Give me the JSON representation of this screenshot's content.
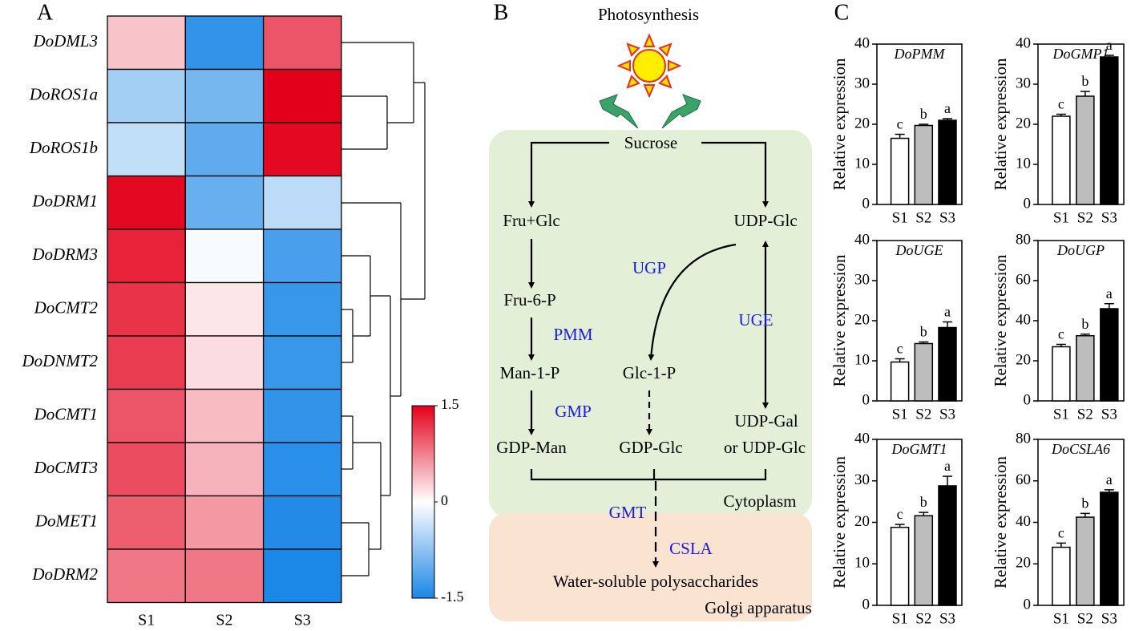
{
  "panel_labels": [
    "A",
    "B",
    "C"
  ],
  "chart_data": [
    {
      "type": "heatmap",
      "rows": [
        "DoDML3",
        "DoROS1a",
        "DoROS1b",
        "DoDRM1",
        "DoDRM3",
        "DoCMT2",
        "DoDNMT2",
        "DoCMT1",
        "DoCMT3",
        "DoMET1",
        "DoDRM2"
      ],
      "columns": [
        "S1",
        "S2",
        "S3"
      ],
      "values": [
        [
          0.35,
          -1.35,
          1.0
        ],
        [
          -0.6,
          -0.9,
          1.5
        ],
        [
          -0.4,
          -1.05,
          1.45
        ],
        [
          1.45,
          -1.0,
          -0.45
        ],
        [
          1.3,
          -0.05,
          -1.2
        ],
        [
          1.2,
          0.15,
          -1.3
        ],
        [
          1.15,
          0.2,
          -1.3
        ],
        [
          1.0,
          0.4,
          -1.35
        ],
        [
          1.05,
          0.45,
          -1.4
        ],
        [
          0.95,
          0.6,
          -1.45
        ],
        [
          0.8,
          0.8,
          -1.5
        ]
      ],
      "zlim": [
        -1.5,
        1.5
      ],
      "zticks": [
        1.5,
        0,
        -1.5
      ],
      "colors": [
        "#1b87e6",
        "#ffffff",
        "#e3001b"
      ]
    },
    {
      "type": "bar",
      "title": "DoPMM",
      "ylabel": "Relative expression",
      "categories": [
        "S1",
        "S2",
        "S3"
      ],
      "values": [
        16.5,
        19.7,
        21.0
      ],
      "errors": [
        1.0,
        0.3,
        0.4
      ],
      "labels": [
        "c",
        "b",
        "a"
      ],
      "colors": [
        "#ffffff",
        "#bdbdbd",
        "#000000"
      ],
      "ylim": [
        0,
        40
      ],
      "yticks": [
        0,
        10,
        20,
        30,
        40
      ]
    },
    {
      "type": "bar",
      "title": "DoGMP1",
      "ylabel": "Relative expression",
      "categories": [
        "S1",
        "S2",
        "S3"
      ],
      "values": [
        22.0,
        27.0,
        36.8
      ],
      "errors": [
        0.5,
        1.2,
        0.4
      ],
      "labels": [
        "c",
        "b",
        "a"
      ],
      "colors": [
        "#ffffff",
        "#bdbdbd",
        "#000000"
      ],
      "ylim": [
        0,
        40
      ],
      "yticks": [
        0,
        10,
        20,
        30,
        40
      ]
    },
    {
      "type": "bar",
      "title": "DoUGE",
      "ylabel": "Relative expression",
      "categories": [
        "S1",
        "S2",
        "S3"
      ],
      "values": [
        9.7,
        14.3,
        18.3
      ],
      "errors": [
        0.8,
        0.4,
        1.4
      ],
      "labels": [
        "c",
        "b",
        "a"
      ],
      "colors": [
        "#ffffff",
        "#bdbdbd",
        "#000000"
      ],
      "ylim": [
        0,
        40
      ],
      "yticks": [
        0,
        10,
        20,
        30,
        40
      ]
    },
    {
      "type": "bar",
      "title": "DoUGP",
      "ylabel": "Relative expression",
      "categories": [
        "S1",
        "S2",
        "S3"
      ],
      "values": [
        27.0,
        32.5,
        46.0
      ],
      "errors": [
        1.2,
        0.8,
        2.5
      ],
      "labels": [
        "c",
        "b",
        "a"
      ],
      "colors": [
        "#ffffff",
        "#bdbdbd",
        "#000000"
      ],
      "ylim": [
        0,
        80
      ],
      "yticks": [
        0,
        20,
        40,
        60,
        80
      ]
    },
    {
      "type": "bar",
      "title": "DoGMT1",
      "ylabel": "Relative expression",
      "categories": [
        "S1",
        "S2",
        "S3"
      ],
      "values": [
        18.8,
        21.6,
        28.8
      ],
      "errors": [
        0.7,
        0.8,
        2.3
      ],
      "labels": [
        "c",
        "b",
        "a"
      ],
      "colors": [
        "#ffffff",
        "#bdbdbd",
        "#000000"
      ],
      "ylim": [
        0,
        40
      ],
      "yticks": [
        0,
        10,
        20,
        30,
        40
      ]
    },
    {
      "type": "bar",
      "title": "DoCSLA6",
      "ylabel": "Relative expression",
      "categories": [
        "S1",
        "S2",
        "S3"
      ],
      "values": [
        28.0,
        42.5,
        54.5
      ],
      "errors": [
        2.0,
        1.8,
        1.2
      ],
      "labels": [
        "c",
        "b",
        "a"
      ],
      "colors": [
        "#ffffff",
        "#bdbdbd",
        "#000000"
      ],
      "ylim": [
        0,
        80
      ],
      "yticks": [
        0,
        20,
        40,
        60,
        80
      ]
    }
  ],
  "diagram": {
    "title": "Photosynthesis",
    "nodes": [
      "Sucrose",
      "Fru+Glc",
      "UDP-Glc",
      "Fru-6-P",
      "Man-1-P",
      "Glc-1-P",
      "UDP-Gal",
      "or UDP-Glc",
      "GDP-Man",
      "GDP-Glc",
      "Water-soluble polysaccharides"
    ],
    "enzymes": [
      "UGP",
      "PMM",
      "UGE",
      "GMP",
      "GMT",
      "CSLA"
    ],
    "compartments": [
      "Cytoplasm",
      "Golgi apparatus"
    ]
  }
}
